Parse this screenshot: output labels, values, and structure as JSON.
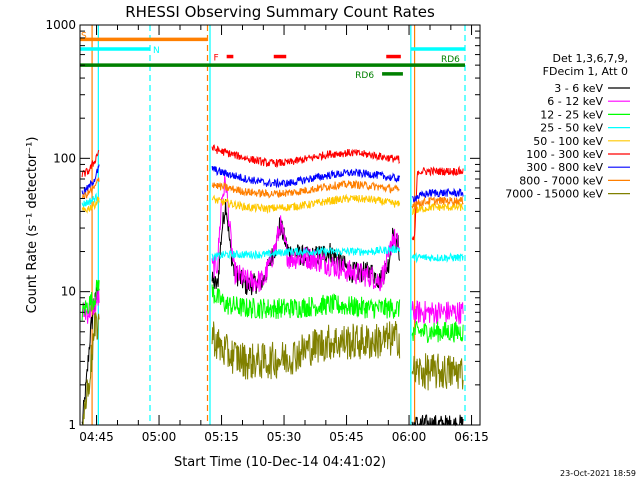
{
  "chart_data": {
    "type": "line",
    "title": "RHESSI Observing Summary Count Rates",
    "xlabel": "Start Time (10-Dec-14 04:41:02)",
    "ylabel": "Count Rate (s⁻¹ detector⁻¹)",
    "ylog": true,
    "ylim": [
      1,
      1000
    ],
    "xlim_minutes": [
      0,
      96
    ],
    "x_ticks": [
      {
        "t": 3.97,
        "label": "04:45"
      },
      {
        "t": 18.97,
        "label": "05:00"
      },
      {
        "t": 33.97,
        "label": "05:15"
      },
      {
        "t": 48.97,
        "label": "05:30"
      },
      {
        "t": 63.97,
        "label": "05:45"
      },
      {
        "t": 78.97,
        "label": "06:00"
      },
      {
        "t": 93.97,
        "label": "06:15"
      }
    ],
    "y_ticks": [
      {
        "v": 1,
        "label": "1"
      },
      {
        "v": 10,
        "label": "10"
      },
      {
        "v": 100,
        "label": "100"
      },
      {
        "v": 1000,
        "label": "1000"
      }
    ],
    "legend_header": [
      "Det 1,3,6,7,9,",
      "FDecim 1, Att 0"
    ],
    "legend_placement": "right",
    "timestamp": "23-Oct-2021 18:59",
    "data_gaps_minutes": [
      [
        4.7,
        31.6
      ],
      [
        76.8,
        79.6
      ]
    ],
    "vlines": [
      {
        "t": 2.9,
        "color": "#ff7f00",
        "style": "solid"
      },
      {
        "t": 4.4,
        "color": "#00ffff",
        "style": "solid"
      },
      {
        "t": 16.8,
        "color": "#00ffff",
        "style": "dashed"
      },
      {
        "t": 30.6,
        "color": "#ff7f00",
        "style": "dashed"
      },
      {
        "t": 31.2,
        "color": "#00ffff",
        "style": "solid"
      },
      {
        "t": 79.4,
        "color": "#00ffff",
        "style": "solid"
      },
      {
        "t": 80.3,
        "color": "#ff7f00",
        "style": "solid"
      },
      {
        "t": 92.4,
        "color": "#00ffff",
        "style": "dashed"
      }
    ],
    "flag_bars": [
      {
        "label": "S",
        "color": "#ff7f00",
        "t0": 0,
        "t1": 30.6,
        "level": 780,
        "label_pos": "start"
      },
      {
        "label": "N",
        "color": "#00ffff",
        "t0": 0,
        "t1": 16.8,
        "level": 660,
        "label_pos": "end"
      },
      {
        "label": "",
        "color": "#00ffff",
        "t0": 79.4,
        "t1": 92.4,
        "level": 660,
        "label_pos": "none"
      },
      {
        "label": "F",
        "color": "#ff0000",
        "t0": 35.2,
        "t1": 36.8,
        "level": 580,
        "label_pos": "left"
      },
      {
        "label": "",
        "color": "#ff0000",
        "t0": 46.5,
        "t1": 49.5,
        "level": 580,
        "label_pos": "none"
      },
      {
        "label": "",
        "color": "#ff0000",
        "t0": 73.5,
        "t1": 77.0,
        "level": 580,
        "label_pos": "none"
      },
      {
        "label": "RD6",
        "color": "#008000",
        "t0": 0,
        "t1": 92.4,
        "level": 500,
        "label_pos": "after"
      },
      {
        "label": "RD6",
        "color": "#008000",
        "t0": 72.5,
        "t1": 77.5,
        "level": 430,
        "label_pos": "left"
      }
    ],
    "series": [
      {
        "name": "3 - 6 keV",
        "color": "#000000",
        "noise": 0.08,
        "points": [
          [
            0.5,
            1
          ],
          [
            1.5,
            2
          ],
          [
            2.5,
            5
          ],
          [
            3.5,
            8
          ],
          [
            4.5,
            11
          ],
          [
            31.6,
            12
          ],
          [
            33,
            11
          ],
          [
            34,
            28
          ],
          [
            35,
            48
          ],
          [
            36,
            22
          ],
          [
            37,
            14
          ],
          [
            40,
            11
          ],
          [
            44,
            12
          ],
          [
            47,
            22
          ],
          [
            48,
            32
          ],
          [
            50,
            20
          ],
          [
            55,
            18
          ],
          [
            60,
            20
          ],
          [
            65,
            14
          ],
          [
            70,
            14
          ],
          [
            72,
            12
          ],
          [
            74,
            16
          ],
          [
            75,
            26
          ],
          [
            76.5,
            22
          ],
          [
            79.6,
            1
          ],
          [
            84,
            1
          ],
          [
            88,
            1
          ],
          [
            92,
            1
          ]
        ]
      },
      {
        "name": "6 - 12 keV",
        "color": "#ff00ff",
        "noise": 0.09,
        "points": [
          [
            0.5,
            7
          ],
          [
            2,
            7
          ],
          [
            3.5,
            8
          ],
          [
            4.5,
            9
          ],
          [
            31.6,
            15
          ],
          [
            33,
            16
          ],
          [
            34,
            50
          ],
          [
            35,
            68
          ],
          [
            36,
            28
          ],
          [
            37,
            14
          ],
          [
            40,
            12
          ],
          [
            44,
            12
          ],
          [
            47,
            22
          ],
          [
            48,
            32
          ],
          [
            50,
            18
          ],
          [
            55,
            18
          ],
          [
            60,
            16
          ],
          [
            65,
            14
          ],
          [
            70,
            13
          ],
          [
            72,
            12
          ],
          [
            74,
            17
          ],
          [
            75,
            26
          ],
          [
            76.5,
            22
          ],
          [
            79.6,
            7
          ],
          [
            84,
            7
          ],
          [
            88,
            7
          ],
          [
            92,
            7
          ]
        ]
      },
      {
        "name": "12 - 25 keV",
        "color": "#00ff00",
        "noise": 0.08,
        "points": [
          [
            0.5,
            7
          ],
          [
            2,
            8
          ],
          [
            3.5,
            9
          ],
          [
            4.5,
            12
          ],
          [
            31.6,
            10
          ],
          [
            33,
            9
          ],
          [
            35,
            8
          ],
          [
            40,
            7.5
          ],
          [
            50,
            7.5
          ],
          [
            60,
            8
          ],
          [
            70,
            7.5
          ],
          [
            76.5,
            7.5
          ],
          [
            79.6,
            5
          ],
          [
            84,
            5
          ],
          [
            88,
            5
          ],
          [
            92,
            5
          ]
        ]
      },
      {
        "name": "25 - 50 keV",
        "color": "#00ffff",
        "noise": 0.03,
        "points": [
          [
            0.5,
            45
          ],
          [
            2,
            47
          ],
          [
            3.5,
            50
          ],
          [
            4.5,
            52
          ],
          [
            31.6,
            18
          ],
          [
            35,
            19
          ],
          [
            45,
            19
          ],
          [
            50,
            20
          ],
          [
            60,
            20
          ],
          [
            70,
            20
          ],
          [
            76.5,
            21
          ],
          [
            79.6,
            18
          ],
          [
            84,
            18
          ],
          [
            88,
            18
          ],
          [
            92,
            18
          ]
        ]
      },
      {
        "name": "50 - 100 keV",
        "color": "#ffc800",
        "noise": 0.03,
        "points": [
          [
            0.5,
            40
          ],
          [
            2,
            42
          ],
          [
            3.5,
            45
          ],
          [
            4.5,
            50
          ],
          [
            31.6,
            50
          ],
          [
            33,
            48
          ],
          [
            40,
            43
          ],
          [
            45,
            42
          ],
          [
            50,
            43
          ],
          [
            55,
            45
          ],
          [
            60,
            48
          ],
          [
            65,
            50
          ],
          [
            70,
            49
          ],
          [
            76.5,
            45
          ],
          [
            79.6,
            40
          ],
          [
            84,
            43
          ],
          [
            88,
            43
          ],
          [
            92,
            43
          ]
        ]
      },
      {
        "name": "100 - 300 keV",
        "color": "#ff0000",
        "noise": 0.03,
        "points": [
          [
            0.5,
            75
          ],
          [
            2,
            80
          ],
          [
            3.5,
            95
          ],
          [
            4.5,
            115
          ],
          [
            31.6,
            120
          ],
          [
            33,
            115
          ],
          [
            40,
            100
          ],
          [
            45,
            92
          ],
          [
            50,
            93
          ],
          [
            55,
            100
          ],
          [
            60,
            108
          ],
          [
            65,
            110
          ],
          [
            70,
            106
          ],
          [
            76.5,
            98
          ],
          [
            79.6,
            25
          ],
          [
            80.3,
            25
          ],
          [
            81,
            80
          ],
          [
            84,
            80
          ],
          [
            88,
            80
          ],
          [
            92,
            80
          ]
        ]
      },
      {
        "name": "300 - 800 keV",
        "color": "#0000ff",
        "noise": 0.03,
        "points": [
          [
            0.5,
            55
          ],
          [
            2,
            60
          ],
          [
            3.5,
            70
          ],
          [
            4.5,
            85
          ],
          [
            31.6,
            85
          ],
          [
            33,
            80
          ],
          [
            40,
            70
          ],
          [
            45,
            65
          ],
          [
            50,
            65
          ],
          [
            55,
            70
          ],
          [
            60,
            75
          ],
          [
            65,
            78
          ],
          [
            70,
            76
          ],
          [
            76.5,
            70
          ],
          [
            79.6,
            50
          ],
          [
            84,
            55
          ],
          [
            88,
            55
          ],
          [
            92,
            55
          ]
        ]
      },
      {
        "name": "800 - 7000 keV",
        "color": "#ff7f00",
        "noise": 0.03,
        "points": [
          [
            0.5,
            50
          ],
          [
            2,
            55
          ],
          [
            3.5,
            60
          ],
          [
            4.5,
            70
          ],
          [
            31.6,
            65
          ],
          [
            33,
            62
          ],
          [
            40,
            56
          ],
          [
            45,
            54
          ],
          [
            50,
            55
          ],
          [
            55,
            58
          ],
          [
            60,
            62
          ],
          [
            65,
            64
          ],
          [
            70,
            62
          ],
          [
            76.5,
            58
          ],
          [
            79.6,
            45
          ],
          [
            84,
            48
          ],
          [
            88,
            48
          ],
          [
            92,
            48
          ]
        ]
      },
      {
        "name": "7000 - 15000 keV",
        "color": "#808000",
        "noise": 0.14,
        "points": [
          [
            0.5,
            1
          ],
          [
            2,
            2
          ],
          [
            3.5,
            5
          ],
          [
            4.5,
            6
          ],
          [
            31.6,
            5
          ],
          [
            33,
            4
          ],
          [
            35,
            3.5
          ],
          [
            40,
            3
          ],
          [
            45,
            3
          ],
          [
            50,
            3.2
          ],
          [
            55,
            3.8
          ],
          [
            60,
            4.2
          ],
          [
            65,
            4.2
          ],
          [
            70,
            4.2
          ],
          [
            76.5,
            4.5
          ],
          [
            79.6,
            2.5
          ],
          [
            84,
            2.5
          ],
          [
            88,
            2.5
          ],
          [
            92,
            2.5
          ]
        ]
      }
    ]
  }
}
